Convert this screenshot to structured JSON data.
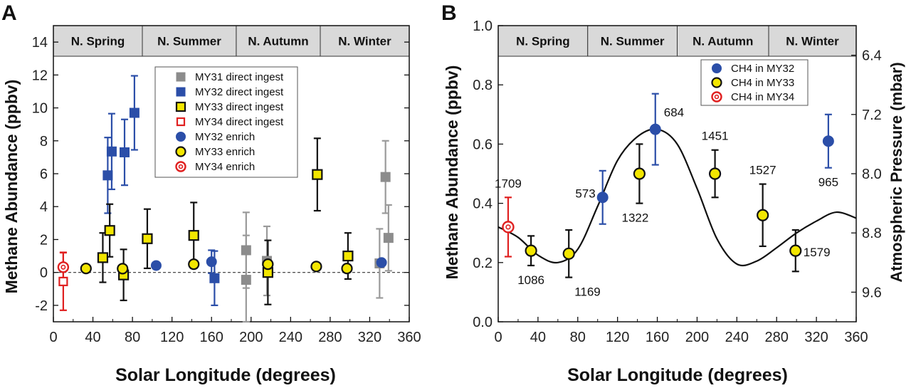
{
  "chart_data": [
    {
      "panel": "A",
      "type": "scatter",
      "xlabel": "Solar Longitude (degrees)",
      "ylabel": "Methane Abundance (ppbv)",
      "xlim": [
        0,
        360
      ],
      "ylim": [
        -3,
        15
      ],
      "xticks": [
        0,
        40,
        80,
        120,
        160,
        200,
        240,
        280,
        320,
        360
      ],
      "yticks": [
        -2,
        0,
        2,
        4,
        6,
        8,
        10,
        12,
        14
      ],
      "ytick_labels": [
        "-2",
        "0",
        "2",
        "4",
        "6",
        "8",
        "10",
        "12",
        "14"
      ],
      "reference_line": {
        "y": 0,
        "style": "dashed"
      },
      "seasons": [
        {
          "label": "N. Spring",
          "start": 0,
          "end": 90
        },
        {
          "label": "N. Summer",
          "start": 90,
          "end": 185
        },
        {
          "label": "N. Autumn",
          "start": 185,
          "end": 270
        },
        {
          "label": "N. Winter",
          "start": 270,
          "end": 360
        }
      ],
      "legend_position": "top-right",
      "series": [
        {
          "name": "MY31 direct ingest",
          "marker": "square",
          "fill": "#8c8c8c",
          "stroke": "#8c8c8c",
          "error_color": "#9a9a9a",
          "points": [
            [
              195,
              1.35,
              2.3
            ],
            [
              195,
              -0.45,
              2.7
            ],
            [
              216,
              0.7,
              2.1
            ],
            [
              336,
              5.8,
              2.2
            ],
            [
              339,
              2.1,
              2.0
            ],
            [
              330,
              0.55,
              2.1
            ]
          ]
        },
        {
          "name": "MY32 direct ingest",
          "marker": "square",
          "fill": "#2b4ea8",
          "stroke": "#2b4ea8",
          "error_color": "#2b4ea8",
          "points": [
            [
              55,
              5.9,
              2.3
            ],
            [
              59,
              7.35,
              2.3
            ],
            [
              72,
              7.3,
              2.0
            ],
            [
              82,
              9.7,
              2.25
            ],
            [
              163,
              -0.35,
              1.65
            ]
          ]
        },
        {
          "name": "MY33 direct ingest",
          "marker": "square",
          "fill": "#f3e600",
          "stroke": "#111111",
          "error_color": "#111111",
          "points": [
            [
              50,
              0.9,
              1.5
            ],
            [
              57,
              2.55,
              1.6
            ],
            [
              71,
              -0.15,
              1.55
            ],
            [
              95,
              2.05,
              1.8
            ],
            [
              142,
              2.25,
              2.0
            ],
            [
              217,
              0.0,
              1.95
            ],
            [
              267,
              5.95,
              2.2
            ],
            [
              298,
              1.0,
              1.4
            ]
          ]
        },
        {
          "name": "MY34 direct ingest",
          "marker": "open-square",
          "fill": "#ffffff",
          "stroke": "#e02020",
          "error_color": "#e02020",
          "points": [
            [
              10,
              -0.55,
              1.75
            ]
          ]
        },
        {
          "name": "MY32 enrich",
          "marker": "circle",
          "fill": "#2b4ea8",
          "stroke": "#2b4ea8",
          "error_color": "#2b4ea8",
          "points": [
            [
              104,
              0.42,
              0
            ],
            [
              160,
              0.65,
              0.7
            ],
            [
              332,
              0.6,
              0
            ]
          ]
        },
        {
          "name": "MY33 enrich",
          "marker": "circle",
          "fill": "#f3e600",
          "stroke": "#111111",
          "error_color": "#111111",
          "points": [
            [
              33,
              0.24,
              0
            ],
            [
              70,
              0.23,
              0
            ],
            [
              142,
              0.5,
              0
            ],
            [
              217,
              0.5,
              0
            ],
            [
              266,
              0.36,
              0
            ],
            [
              297,
              0.24,
              0
            ]
          ]
        },
        {
          "name": "MY34 enrich",
          "marker": "ring",
          "fill": "#ffffff",
          "stroke": "#e02020",
          "error_color": "#e02020",
          "points": [
            [
              10,
              0.32,
              0.9
            ]
          ]
        }
      ]
    },
    {
      "panel": "B",
      "type": "scatter",
      "xlabel": "Solar Longitude (degrees)",
      "ylabel": "Methane Abundance (ppbv)",
      "y2label": "Atmospheric Pressure (mbar)",
      "xlim": [
        0,
        360
      ],
      "ylim": [
        0,
        1
      ],
      "xticks": [
        0,
        40,
        80,
        120,
        160,
        200,
        240,
        280,
        320,
        360
      ],
      "yticks": [
        0,
        0.2,
        0.4,
        0.6,
        0.8,
        1.0
      ],
      "ytick_labels": [
        "0.0",
        "0.2",
        "0.4",
        "0.6",
        "0.8",
        "1.0"
      ],
      "y2lim": [
        6.0,
        10.0
      ],
      "y2_inverted": true,
      "y2ticks": [
        6.4,
        7.2,
        8.0,
        8.8,
        9.6
      ],
      "y2tick_labels": [
        "6.4",
        "7.2",
        "8.0",
        "8.8",
        "9.6"
      ],
      "seasons": [
        {
          "label": "N. Spring",
          "start": 0,
          "end": 90
        },
        {
          "label": "N. Summer",
          "start": 90,
          "end": 180
        },
        {
          "label": "N. Autumn",
          "start": 180,
          "end": 272
        },
        {
          "label": "N. Winter",
          "start": 272,
          "end": 360
        }
      ],
      "legend_position": "top-right",
      "series": [
        {
          "name": "CH4 in MY32",
          "marker": "circle",
          "fill": "#2b4ea8",
          "stroke": "#2b4ea8",
          "error_color": "#2b4ea8",
          "points": [
            {
              "x": 105,
              "y": 0.42,
              "err": 0.09,
              "label": "573",
              "label_pos": "left"
            },
            {
              "x": 158,
              "y": 0.65,
              "err": 0.12,
              "label": "684",
              "label_pos": "upper-right"
            },
            {
              "x": 332,
              "y": 0.61,
              "err": 0.09,
              "label": "965",
              "label_pos": "below"
            }
          ]
        },
        {
          "name": "CH4 in MY33",
          "marker": "circle",
          "fill": "#f3e600",
          "stroke": "#111111",
          "error_color": "#111111",
          "points": [
            {
              "x": 33,
              "y": 0.24,
              "err": 0.05,
              "label": "1086",
              "label_pos": "below"
            },
            {
              "x": 71,
              "y": 0.23,
              "err": 0.08,
              "label": "1169",
              "label_pos": "lower-right"
            },
            {
              "x": 142,
              "y": 0.5,
              "err": 0.1,
              "label": "1322",
              "label_pos": "below-left"
            },
            {
              "x": 218,
              "y": 0.5,
              "err": 0.08,
              "label": "1451",
              "label_pos": "above"
            },
            {
              "x": 266,
              "y": 0.36,
              "err": 0.105,
              "label": "1527",
              "label_pos": "above"
            },
            {
              "x": 299,
              "y": 0.24,
              "err": 0.07,
              "label": "1579",
              "label_pos": "right"
            }
          ]
        },
        {
          "name": "CH4 in MY34",
          "marker": "ring",
          "fill": "#ffffff",
          "stroke": "#e02020",
          "error_color": "#e02020",
          "points": [
            {
              "x": 10,
              "y": 0.32,
              "err": 0.1,
              "label": "1709",
              "label_pos": "above"
            }
          ]
        }
      ],
      "curve": {
        "name": "Atmospheric Pressure",
        "x": [
          0,
          20,
          40,
          60,
          80,
          100,
          120,
          140,
          160,
          180,
          200,
          220,
          240,
          260,
          280,
          300,
          320,
          340,
          360
        ],
        "y": [
          0.32,
          0.285,
          0.225,
          0.2,
          0.245,
          0.39,
          0.545,
          0.625,
          0.65,
          0.6,
          0.45,
          0.28,
          0.195,
          0.205,
          0.25,
          0.3,
          0.34,
          0.37,
          0.35
        ]
      }
    }
  ]
}
